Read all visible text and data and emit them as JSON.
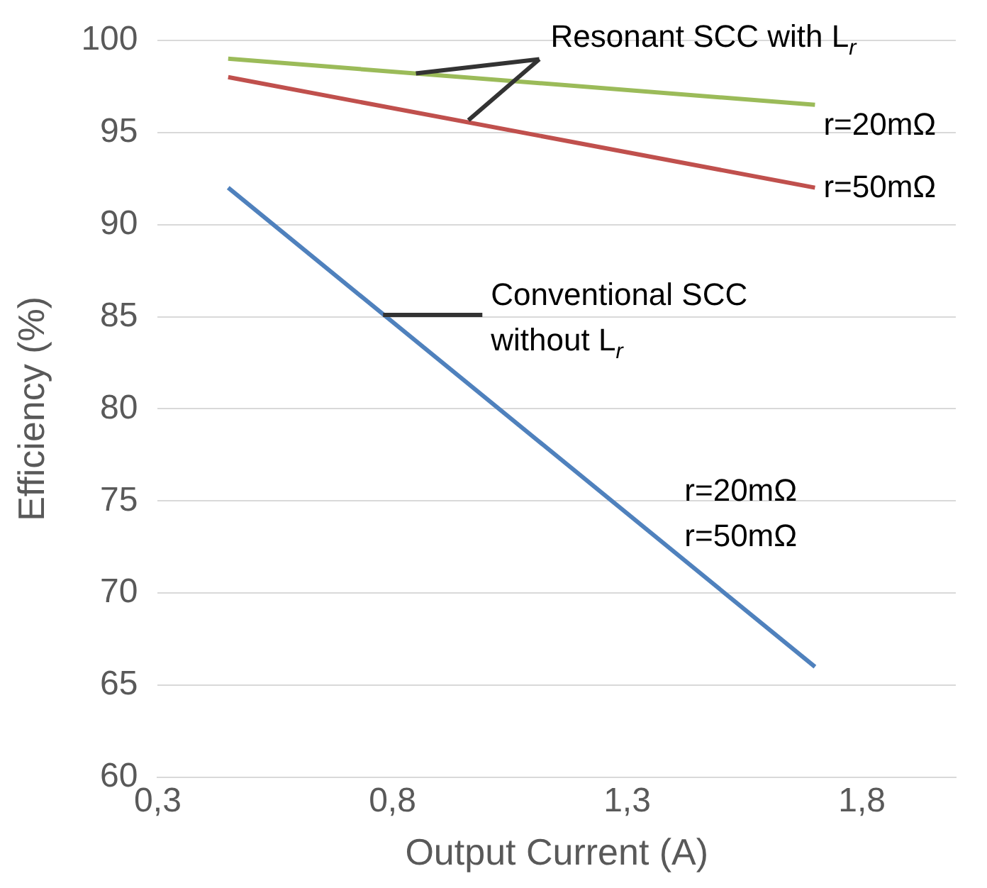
{
  "chart_data": {
    "type": "line",
    "xlabel": "Output Current (A)",
    "ylabel": "Efficiency (%)",
    "xlim": [
      0.3,
      2.0
    ],
    "xticks": [
      {
        "value": 0.3,
        "label": "0,3"
      },
      {
        "value": 0.8,
        "label": "0,8"
      },
      {
        "value": 1.3,
        "label": "1,3"
      },
      {
        "value": 1.8,
        "label": "1,8"
      }
    ],
    "ylim": [
      60,
      100
    ],
    "yticks": [
      60,
      65,
      70,
      75,
      80,
      85,
      90,
      95,
      100
    ],
    "grid": "y",
    "legend": false,
    "marker": "none",
    "line_style": "solid",
    "x": [
      0.45,
      1.7
    ],
    "series": [
      {
        "name": "r=20mΩ",
        "color": "#9bbb59",
        "values": [
          99,
          96.5
        ]
      },
      {
        "name": "r=50mΩ",
        "color": "#c0504d",
        "values": [
          98,
          92
        ]
      },
      {
        "color": "#4f81bd",
        "values": [
          92,
          66
        ]
      }
    ],
    "annotations": [
      {
        "text": "Resonant SCC with L$_{r}$",
        "x": 0.85,
        "y": 98.2
      },
      {
        "text": "Conventional SCC without L$_{r}$",
        "x": 0.78,
        "y": 85.1
      },
      "r=20mΩ\nr=50mΩ"
    ]
  }
}
